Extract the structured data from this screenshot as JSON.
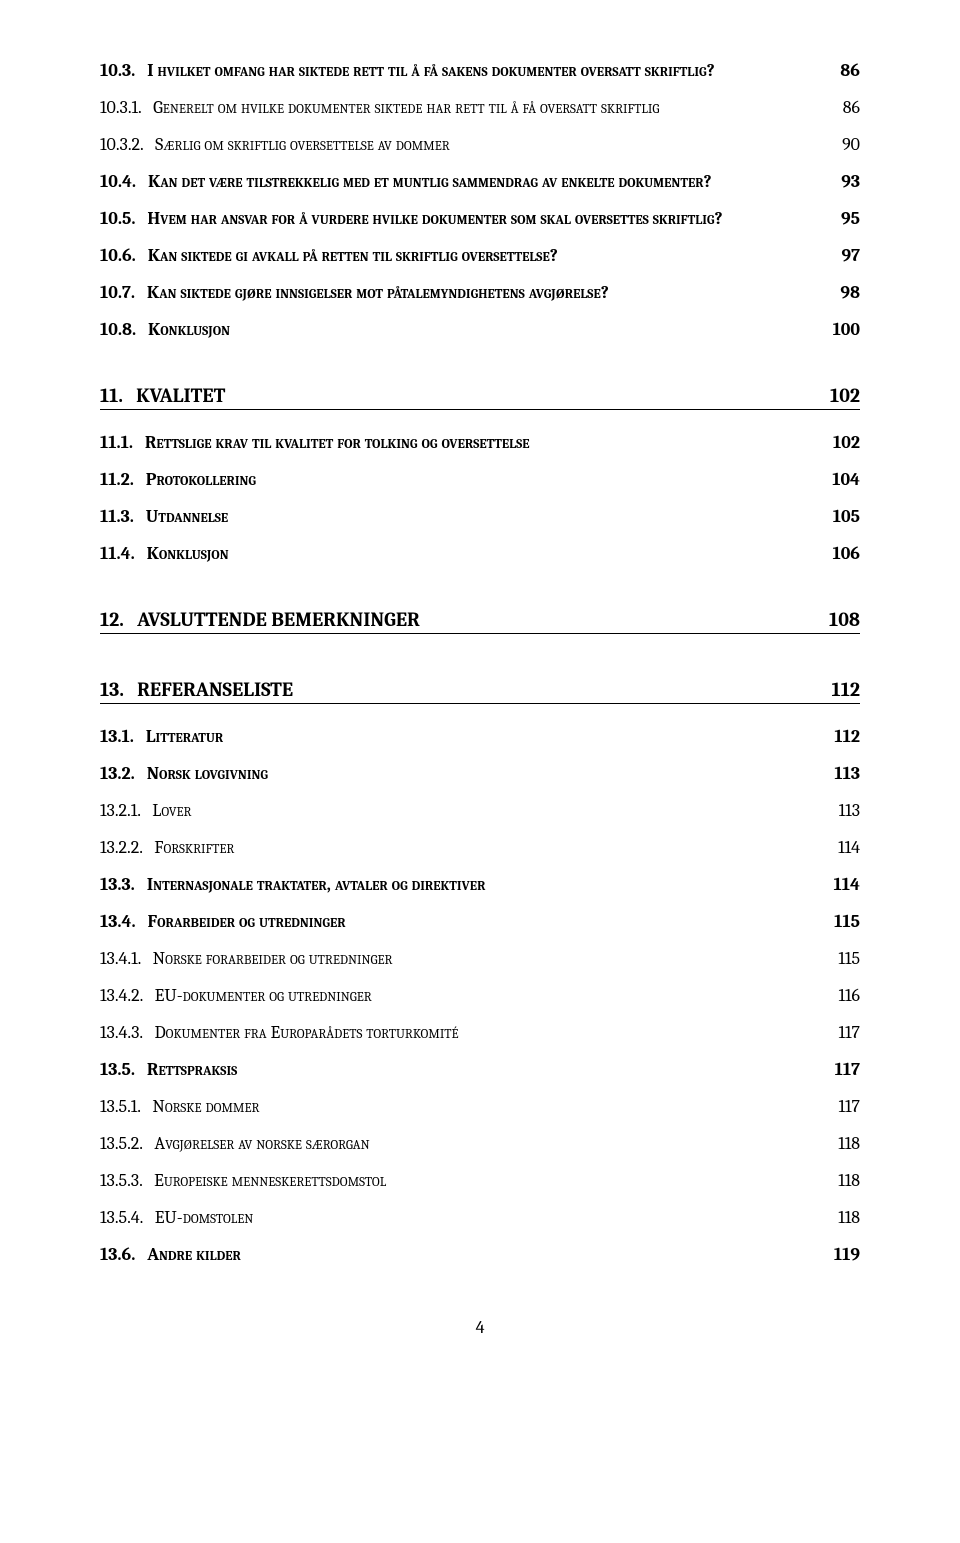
{
  "entries": [
    {
      "level": 2,
      "num": "10.3.",
      "label": "I hvilket omfang har siktede rett til å få sakens dokumenter oversatt skriftlig?",
      "page": "86"
    },
    {
      "level": 3,
      "num": "10.3.1.",
      "label": "Generelt om hvilke dokumenter siktede har rett til å få oversatt skriftlig",
      "page": "86"
    },
    {
      "level": 3,
      "num": "10.3.2.",
      "label": "Særlig om skriftlig oversettelse av dommer",
      "page": "90"
    },
    {
      "level": 2,
      "num": "10.4.",
      "label": "Kan det være tilstrekkelig med et muntlig sammendrag av enkelte dokumenter?",
      "page": "93"
    },
    {
      "level": 2,
      "num": "10.5.",
      "label": "Hvem har ansvar for å vurdere hvilke dokumenter som skal oversettes skriftlig?",
      "page": "95"
    },
    {
      "level": 2,
      "num": "10.6.",
      "label": "Kan siktede gi avkall på retten til skriftlig oversettelse?",
      "page": "97"
    },
    {
      "level": 2,
      "num": "10.7.",
      "label": "Kan siktede gjøre innsigelser mot påtalemyndighetens avgjørelse?",
      "page": "98"
    },
    {
      "level": 2,
      "num": "10.8.",
      "label": "Konklusjon",
      "page": "100"
    },
    {
      "level": 1,
      "num": "11.",
      "label": "KVALITET",
      "page": "102"
    },
    {
      "level": 2,
      "num": "11.1.",
      "label": "Rettslige krav til kvalitet for tolking og oversettelse",
      "page": "102"
    },
    {
      "level": 2,
      "num": "11.2.",
      "label": "Protokollering",
      "page": "104"
    },
    {
      "level": 2,
      "num": "11.3.",
      "label": "Utdannelse",
      "page": "105"
    },
    {
      "level": 2,
      "num": "11.4.",
      "label": "Konklusjon",
      "page": "106"
    },
    {
      "level": 1,
      "num": "12.",
      "label": "AVSLUTTENDE BEMERKNINGER",
      "page": "108"
    },
    {
      "level": 1,
      "num": "13.",
      "label": "REFERANSELISTE",
      "page": "112"
    },
    {
      "level": 2,
      "num": "13.1.",
      "label": "Litteratur",
      "page": "112"
    },
    {
      "level": 2,
      "num": "13.2.",
      "label": "Norsk lovgivning",
      "page": "113"
    },
    {
      "level": 3,
      "num": "13.2.1.",
      "label": "Lover",
      "page": "113"
    },
    {
      "level": 3,
      "num": "13.2.2.",
      "label": "Forskrifter",
      "page": "114"
    },
    {
      "level": 2,
      "num": "13.3.",
      "label": "Internasjonale traktater, avtaler og direktiver",
      "page": "114"
    },
    {
      "level": 2,
      "num": "13.4.",
      "label": "Forarbeider og utredninger",
      "page": "115"
    },
    {
      "level": 3,
      "num": "13.4.1.",
      "label": "Norske forarbeider og utredninger",
      "page": "115"
    },
    {
      "level": 3,
      "num": "13.4.2.",
      "label": "EU-dokumenter og utredninger",
      "page": "116"
    },
    {
      "level": 3,
      "num": "13.4.3.",
      "label": "Dokumenter fra Europarådets torturkomité",
      "page": "117"
    },
    {
      "level": 2,
      "num": "13.5.",
      "label": "Rettspraksis",
      "page": "117"
    },
    {
      "level": 3,
      "num": "13.5.1.",
      "label": "Norske dommer",
      "page": "117"
    },
    {
      "level": 3,
      "num": "13.5.2.",
      "label": "Avgjørelser av norske særorgan",
      "page": "118"
    },
    {
      "level": 3,
      "num": "13.5.3.",
      "label": "Europeiske menneskerettsdomstol",
      "page": "118"
    },
    {
      "level": 3,
      "num": "13.5.4.",
      "label": "EU-domstolen",
      "page": "118"
    },
    {
      "level": 2,
      "num": "13.6.",
      "label": "Andre kilder",
      "page": "119"
    }
  ],
  "page_number": "4"
}
